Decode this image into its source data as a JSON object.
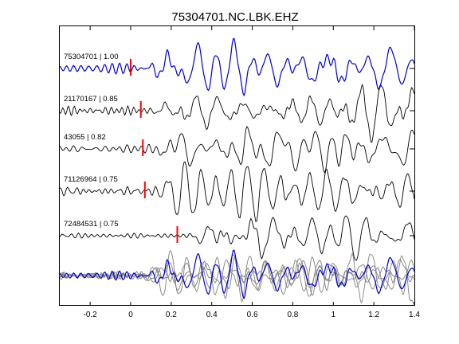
{
  "chart_data": {
    "type": "line",
    "title": "75304701.NC.LBK.EHZ",
    "xlabel": "",
    "ylabel": "",
    "xlim": [
      -0.35,
      1.4
    ],
    "xticks": [
      -0.2,
      0,
      0.2,
      0.4,
      0.6,
      0.8,
      1,
      1.2,
      1.4
    ],
    "xtick_labels": [
      "-0.2",
      "0",
      "0.2",
      "0.4",
      "0.6",
      "0.8",
      "1",
      "1.2",
      "1.4"
    ],
    "grid": false,
    "colors": {
      "reference": "#0000cc",
      "trace": "#000000",
      "pick": "#ff0000",
      "stack_gray": "#808080",
      "axes": "#000000"
    },
    "traces": [
      {
        "label": "75304701 | 1.00",
        "color": "#0000cc",
        "pick_time": 0.0,
        "amplitude": 1.0
      },
      {
        "label": "21170167 | 0.85",
        "color": "#000000",
        "pick_time": 0.05,
        "amplitude": 0.9
      },
      {
        "label": "43055 | 0.82",
        "color": "#000000",
        "pick_time": 0.06,
        "amplitude": 0.8
      },
      {
        "label": "71126964 | 0.75",
        "color": "#000000",
        "pick_time": 0.07,
        "amplitude": 0.85
      },
      {
        "label": "72484531 | 0.75",
        "color": "#000000",
        "pick_time": 0.23,
        "amplitude": 0.8
      }
    ],
    "stack": {
      "reference_color": "#0000cc",
      "overlay_color": "#808080",
      "count": 4
    }
  }
}
